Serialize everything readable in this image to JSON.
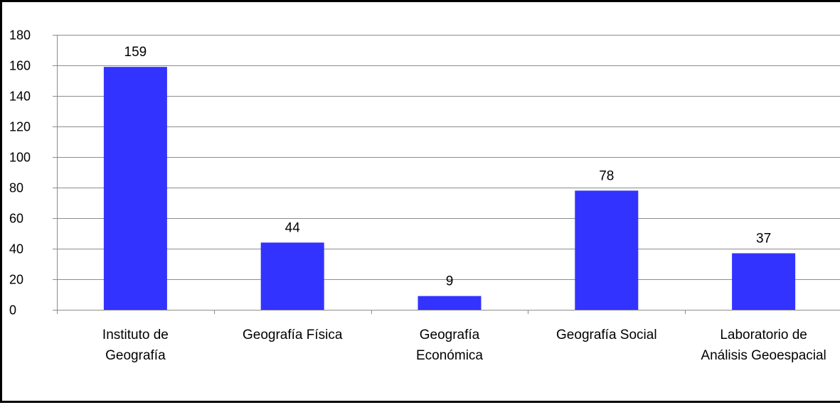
{
  "chart_data": {
    "type": "bar",
    "title": "",
    "xlabel": "",
    "ylabel": "",
    "categories": [
      [
        "Instituto de",
        "Geografía"
      ],
      [
        "Geografía Física"
      ],
      [
        "Geografía",
        "Económica"
      ],
      [
        "Geografía Social"
      ],
      [
        "Laboratorio de",
        "Análisis Geoespacial"
      ]
    ],
    "values": [
      159,
      44,
      9,
      78,
      37
    ],
    "ylim": [
      0,
      180
    ],
    "yticks": [
      "0",
      "20",
      "40",
      "60",
      "80",
      "100",
      "120",
      "140",
      "160",
      "180"
    ],
    "grid": true,
    "legend": "none",
    "bar_color": "#3333ff",
    "grid_color": "#8c8c8c"
  }
}
